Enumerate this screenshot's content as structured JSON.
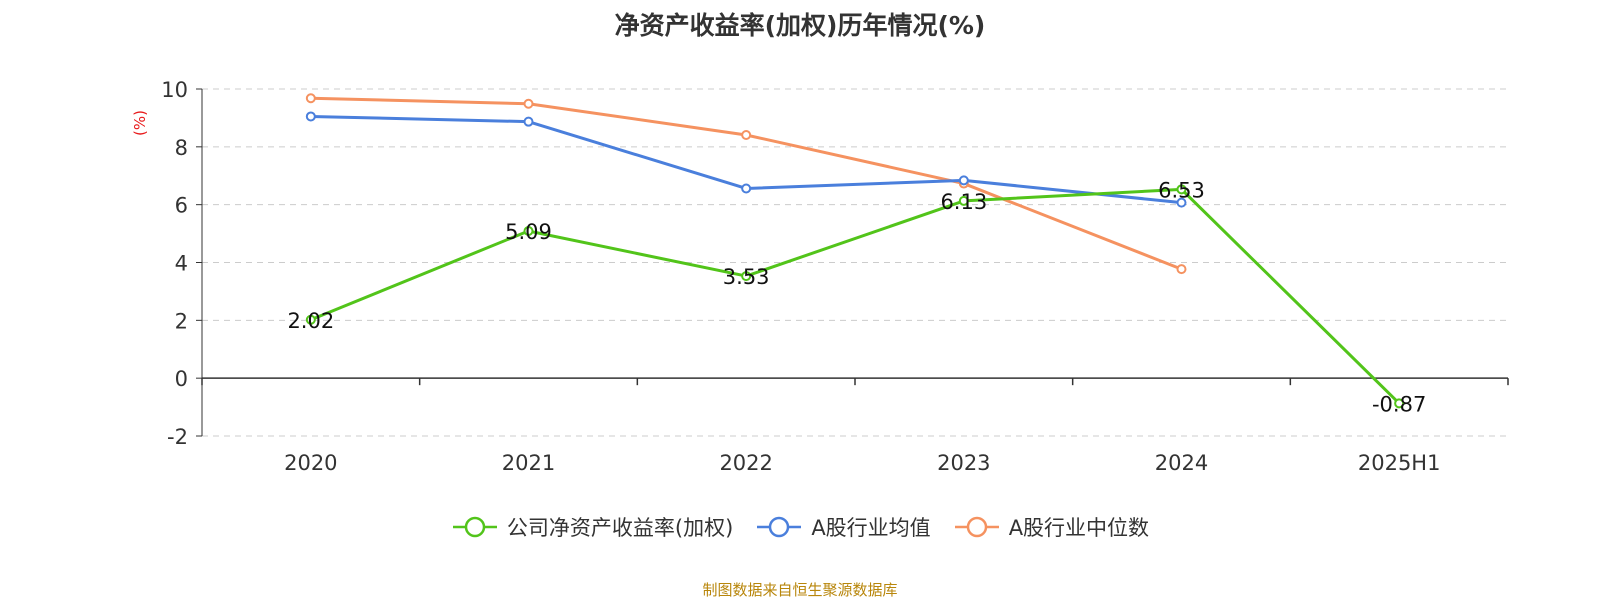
{
  "title": "净资产收益率(加权)历年情况(%)",
  "source_note": "制图数据来自恒生聚源数据库",
  "chart_data": {
    "type": "line",
    "title": "净资产收益率(加权)历年情况(%)",
    "ylabel": "(%)",
    "xlabel": "",
    "categories": [
      "2020",
      "2021",
      "2022",
      "2023",
      "2024",
      "2025H1"
    ],
    "ylim": [
      -2,
      10
    ],
    "yticks": [
      -2,
      0,
      2,
      4,
      6,
      8,
      10
    ],
    "grid": true,
    "legend_position": "bottom",
    "series": [
      {
        "name": "公司净资产收益率(加权)",
        "color": "#52c41a",
        "show_labels": true,
        "values": [
          2.02,
          5.09,
          3.53,
          6.13,
          6.53,
          -0.87
        ]
      },
      {
        "name": "A股行业均值",
        "color": "#4a7fdc",
        "show_labels": false,
        "values": [
          9.05,
          8.87,
          6.56,
          6.84,
          6.07,
          null
        ]
      },
      {
        "name": "A股行业中位数",
        "color": "#f59260",
        "show_labels": false,
        "values": [
          9.68,
          9.49,
          8.41,
          6.73,
          3.77,
          null
        ]
      }
    ]
  }
}
